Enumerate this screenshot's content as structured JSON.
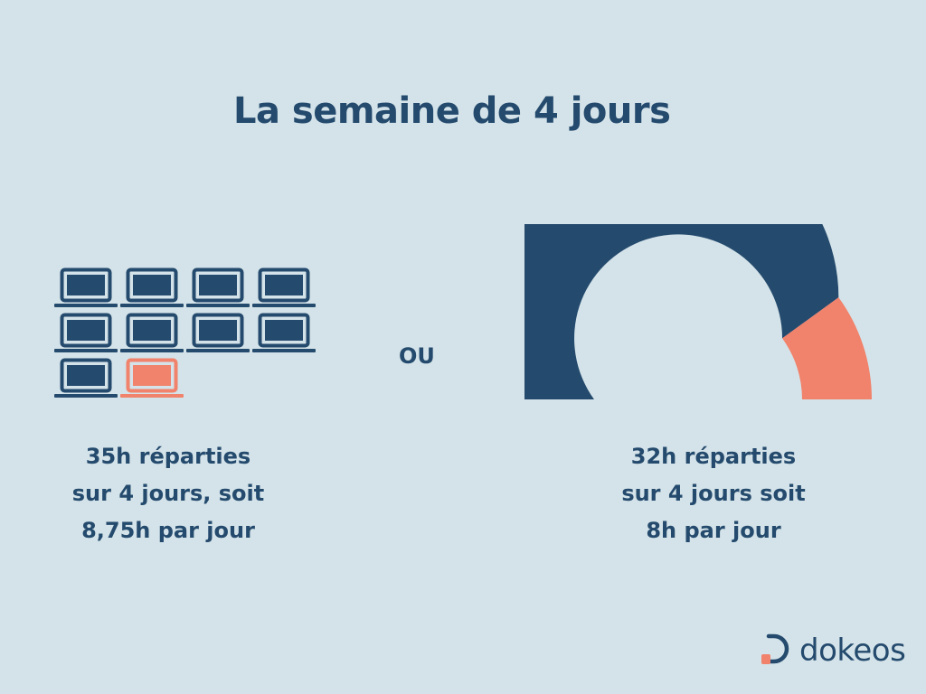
{
  "title": "La semaine de 4 jours",
  "separator": "OU",
  "colors": {
    "background": "#d4e3e9",
    "primary": "#244a6d",
    "accent": "#f1826b"
  },
  "option_a": {
    "icon": "laptop-icon",
    "laptops_total": 10,
    "laptops_highlighted": 1,
    "caption_lines": [
      "35h réparties",
      "sur 4 jours, soit",
      "8,75h par jour"
    ]
  },
  "option_b": {
    "gauge_fraction_primary": 0.8,
    "caption_lines": [
      "32h réparties",
      "sur 4 jours soit",
      "8h par jour"
    ]
  },
  "logo": {
    "text": "dokeos",
    "icon": "dokeos-logo-icon"
  }
}
